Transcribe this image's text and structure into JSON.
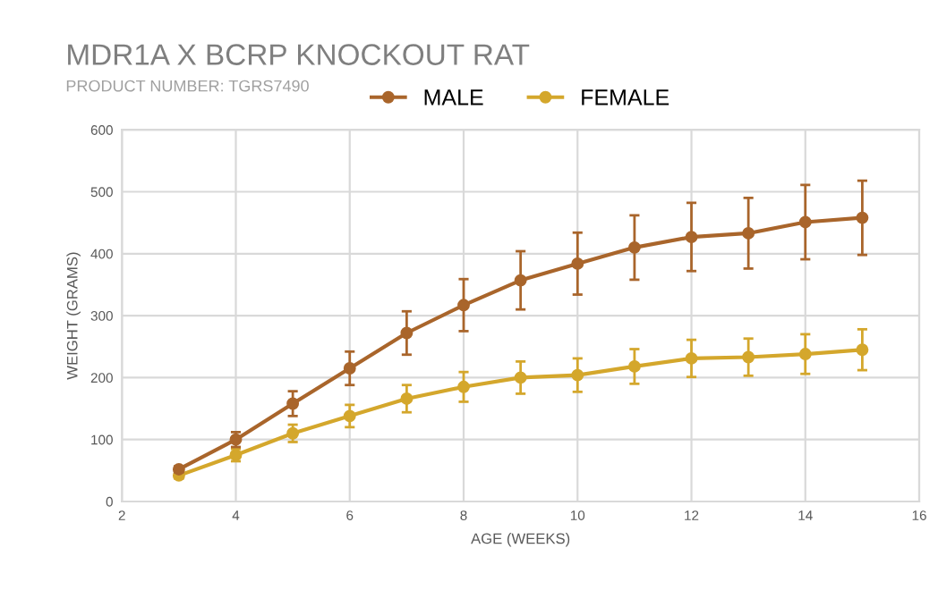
{
  "chart_data": {
    "type": "line",
    "title": "MDR1A X BCRP KNOCKOUT RAT",
    "subtitle": "PRODUCT NUMBER: TGRS7490",
    "xlabel": "AGE (WEEKS)",
    "ylabel": "WEIGHT (GRAMS)",
    "x": [
      3,
      4,
      5,
      6,
      7,
      8,
      9,
      10,
      11,
      12,
      13,
      14,
      15
    ],
    "series": [
      {
        "name": "MALE",
        "color": "#a9652b",
        "values": [
          52,
          100,
          158,
          215,
          272,
          317,
          357,
          384,
          410,
          427,
          433,
          451,
          458
        ],
        "errors": [
          5,
          12,
          20,
          27,
          35,
          42,
          47,
          50,
          52,
          55,
          57,
          60,
          60
        ]
      },
      {
        "name": "FEMALE",
        "color": "#d4a72c",
        "values": [
          42,
          75,
          110,
          138,
          166,
          185,
          200,
          204,
          218,
          231,
          233,
          238,
          245
        ],
        "errors": [
          5,
          10,
          14,
          18,
          22,
          24,
          26,
          27,
          28,
          30,
          30,
          32,
          33
        ]
      }
    ],
    "xlim": [
      2,
      16
    ],
    "xticks": [
      2,
      4,
      6,
      8,
      10,
      12,
      14,
      16
    ],
    "ylim": [
      0,
      600
    ],
    "yticks": [
      0,
      100,
      200,
      300,
      400,
      500,
      600
    ],
    "grid": true,
    "legend": "top",
    "marker": "circle",
    "line_style": "solid"
  }
}
